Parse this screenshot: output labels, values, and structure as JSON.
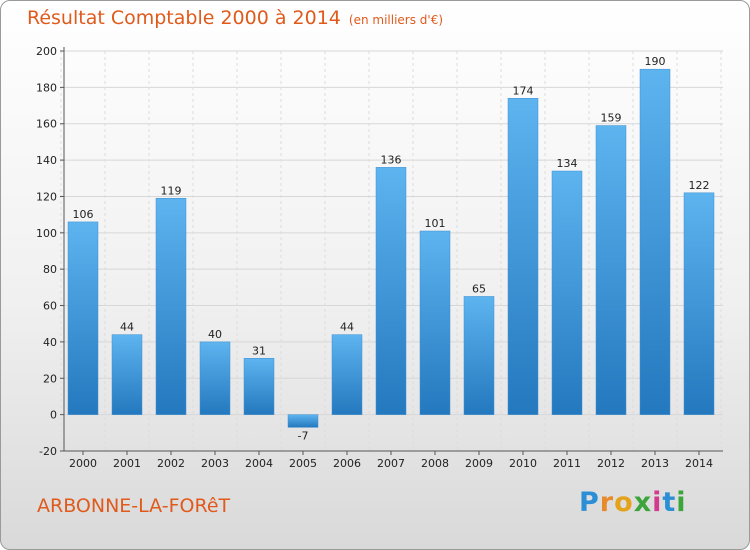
{
  "header": {
    "title": "Résultat Comptable 2000 à 2014",
    "subtitle": "(en milliers d'€)"
  },
  "footer": {
    "location": "ARBONNE-LA-FORêT",
    "brand": "Proxiti"
  },
  "colors": {
    "accent": "#e05a1c",
    "bar_top": "#5db4ef",
    "bar_bottom": "#2478be"
  },
  "chart_data": {
    "type": "bar",
    "categories": [
      "2000",
      "2001",
      "2002",
      "2003",
      "2004",
      "2005",
      "2006",
      "2007",
      "2008",
      "2009",
      "2010",
      "2011",
      "2012",
      "2013",
      "2014"
    ],
    "values": [
      106,
      44,
      119,
      40,
      31,
      -7,
      44,
      136,
      101,
      65,
      174,
      134,
      159,
      190,
      122
    ],
    "title": "Résultat Comptable 2000 à 2014",
    "subtitle": "(en milliers d'€)",
    "xlabel": "",
    "ylabel": "",
    "ylim": [
      -20,
      200
    ],
    "yticks": [
      -20,
      0,
      20,
      40,
      60,
      80,
      100,
      120,
      140,
      160,
      180,
      200
    ],
    "grid": true
  }
}
